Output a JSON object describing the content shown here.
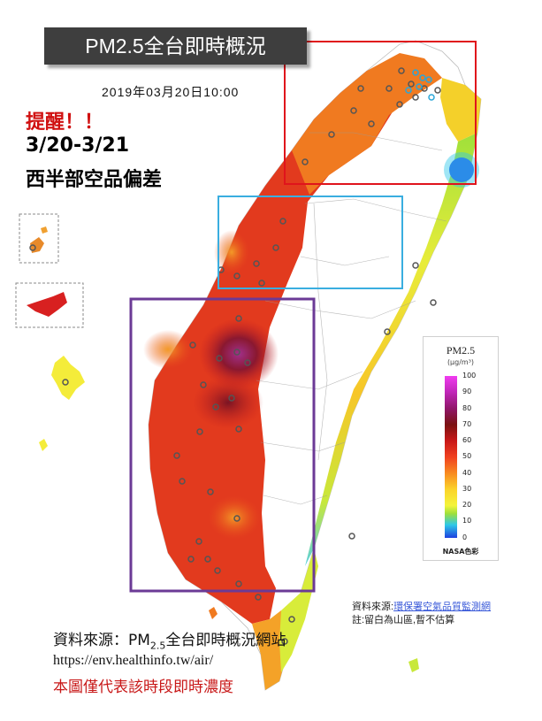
{
  "header": {
    "title": "PM2.5全台即時概況",
    "timestamp": "2019年03月20日10:00"
  },
  "alert": {
    "title": "提醒！！",
    "date_range": "3/20-3/21",
    "description": "西半部空品偏差"
  },
  "legend": {
    "title": "PM2.5",
    "unit": "(μg/m³)",
    "ticks": [
      "100",
      "90",
      "80",
      "70",
      "60",
      "50",
      "40",
      "30",
      "20",
      "10",
      "0"
    ],
    "note": "NASA色彩"
  },
  "source_right": {
    "prefix": "資料來源:",
    "link": "環保署空氣品質監測網",
    "note": "註:留白為山區,暫不估算"
  },
  "source_bottom": {
    "label": "資料來源：PM",
    "sub": "2.5",
    "label_rest": "全台即時概況網站",
    "url": "https://env.healthinfo.tw/air/",
    "note": "本圖僅代表該時段即時濃度"
  },
  "colors": {
    "red_box": "#e0141c",
    "cyan_box": "#3aaee0",
    "purple_box": "#6b3a96",
    "very_high": "#8a1840",
    "high": "#d42020",
    "medium": "#f07018",
    "moderate": "#f7c628",
    "low": "#b8e63a",
    "good": "#28b4e8"
  }
}
